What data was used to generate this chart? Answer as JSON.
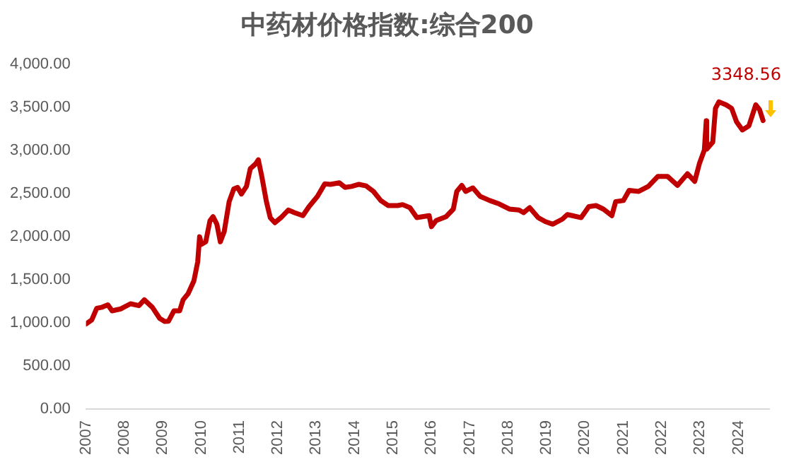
{
  "chart_data": {
    "type": "line",
    "title": "中药材价格指数:综合200",
    "x": [
      2007.0,
      2007.15,
      2007.28,
      2007.4,
      2007.57,
      2007.68,
      2007.91,
      2008.16,
      2008.38,
      2008.52,
      2008.73,
      2008.92,
      2009.05,
      2009.15,
      2009.29,
      2009.44,
      2009.53,
      2009.66,
      2009.81,
      2009.91,
      2009.96,
      2010.01,
      2010.12,
      2010.23,
      2010.31,
      2010.41,
      2010.5,
      2010.6,
      2010.73,
      2010.85,
      2010.95,
      2011.05,
      2011.18,
      2011.28,
      2011.42,
      2011.49,
      2011.58,
      2011.7,
      2011.8,
      2011.92,
      2012.08,
      2012.27,
      2012.43,
      2012.65,
      2012.81,
      2013.03,
      2013.22,
      2013.37,
      2013.6,
      2013.75,
      2013.92,
      2014.11,
      2014.3,
      2014.49,
      2014.68,
      2014.87,
      2015.12,
      2015.25,
      2015.44,
      2015.62,
      2015.94,
      2016.0,
      2016.12,
      2016.38,
      2016.57,
      2016.66,
      2016.79,
      2016.89,
      2017.08,
      2017.27,
      2017.52,
      2017.77,
      2018.03,
      2018.28,
      2018.4,
      2018.56,
      2018.78,
      2018.97,
      2019.16,
      2019.41,
      2019.54,
      2019.67,
      2019.9,
      2020.1,
      2020.29,
      2020.48,
      2020.7,
      2020.8,
      2021.0,
      2021.15,
      2021.4,
      2021.65,
      2021.9,
      2022.15,
      2022.41,
      2022.67,
      2022.86,
      2022.98,
      2023.11,
      2023.16,
      2023.17,
      2023.33,
      2023.4,
      2023.49,
      2023.68,
      2023.82,
      2023.95,
      2024.1,
      2024.27,
      2024.45,
      2024.55,
      2024.64
    ],
    "series": [
      {
        "color": "#c00000",
        "values": [
          988,
          1035,
          1170,
          1180,
          1210,
          1140,
          1163,
          1222,
          1200,
          1268,
          1180,
          1052,
          1017,
          1020,
          1140,
          1140,
          1268,
          1339,
          1486,
          1707,
          2000,
          1912,
          1942,
          2187,
          2233,
          2146,
          1942,
          2058,
          2408,
          2555,
          2573,
          2496,
          2584,
          2789,
          2847,
          2894,
          2701,
          2408,
          2222,
          2163,
          2222,
          2310,
          2280,
          2245,
          2350,
          2468,
          2613,
          2608,
          2626,
          2573,
          2584,
          2608,
          2590,
          2526,
          2420,
          2362,
          2362,
          2373,
          2338,
          2222,
          2245,
          2117,
          2187,
          2233,
          2321,
          2526,
          2596,
          2526,
          2567,
          2468,
          2420,
          2380,
          2321,
          2310,
          2280,
          2338,
          2222,
          2175,
          2146,
          2204,
          2257,
          2245,
          2222,
          2350,
          2362,
          2321,
          2245,
          2408,
          2420,
          2538,
          2526,
          2584,
          2701,
          2701,
          2596,
          2731,
          2643,
          2847,
          3005,
          3345,
          3017,
          3099,
          3490,
          3566,
          3530,
          3490,
          3333,
          3240,
          3286,
          3531,
          3473,
          3348.56
        ]
      }
    ],
    "xlim": [
      2007,
      2024.8
    ],
    "xticks": [
      2007,
      2008,
      2009,
      2010,
      2011,
      2012,
      2013,
      2014,
      2015,
      2016,
      2017,
      2018,
      2019,
      2020,
      2021,
      2022,
      2023,
      2024
    ],
    "ylim": [
      0,
      4000
    ],
    "yticks": [
      {
        "value": 0,
        "label": "0.00"
      },
      {
        "value": 500,
        "label": "500.00"
      },
      {
        "value": 1000,
        "label": "1,000.00"
      },
      {
        "value": 1500,
        "label": "1,500.00"
      },
      {
        "value": 2000,
        "label": "2,000.00"
      },
      {
        "value": 2500,
        "label": "2,500.00"
      },
      {
        "value": 3000,
        "label": "3,000.00"
      },
      {
        "value": 3500,
        "label": "3,500.00"
      },
      {
        "value": 4000,
        "label": "4,000.00"
      }
    ],
    "annotations": [
      {
        "text": "3348.56",
        "x": 2024.64,
        "y": 3348.56
      }
    ],
    "grid": false,
    "legend": false,
    "marker": "none",
    "line_style": "solid"
  }
}
